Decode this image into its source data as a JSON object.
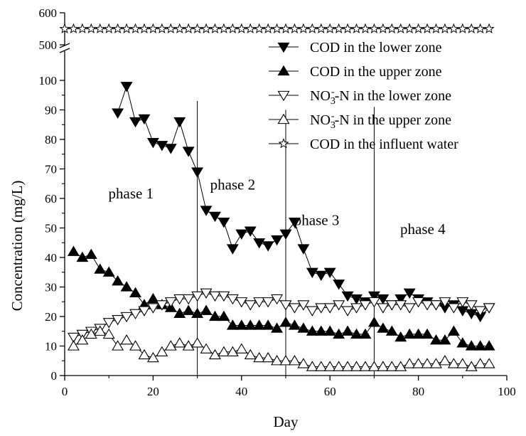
{
  "chart_data": {
    "type": "line",
    "xlabel": "Day",
    "ylabel": "Concentration (mg/L)",
    "xlim": [
      0,
      100
    ],
    "ylim_lower": [
      0,
      100
    ],
    "ylim_upper": [
      500,
      600
    ],
    "axis_break": "between 100 and 500",
    "x_ticks": [
      "0",
      "20",
      "40",
      "60",
      "80",
      "100"
    ],
    "y_ticks_lower": [
      "0",
      "10",
      "20",
      "30",
      "40",
      "50",
      "60",
      "70",
      "80",
      "90",
      "100"
    ],
    "y_ticks_upper": [
      "500",
      "600"
    ],
    "grid": false,
    "legend_position": "top-right",
    "phase_boundaries": [
      30,
      50,
      70
    ],
    "phases": [
      {
        "label": "phase 1",
        "x": 15,
        "y": 60
      },
      {
        "label": "phase 2",
        "x": 38,
        "y": 63
      },
      {
        "label": "phase 3",
        "x": 57,
        "y": 51
      },
      {
        "label": "phase 4",
        "x": 81,
        "y": 48
      }
    ],
    "series": [
      {
        "name": "COD in the lower zone",
        "marker": "triangle-down-filled",
        "x": [
          12,
          14,
          16,
          18,
          20,
          22,
          24,
          26,
          28,
          30,
          32,
          34,
          36,
          38,
          40,
          42,
          44,
          46,
          48,
          50,
          52,
          54,
          56,
          58,
          60,
          62,
          64,
          66,
          68,
          70,
          72,
          74,
          76,
          78,
          80,
          82,
          84,
          86,
          88,
          90,
          92,
          94,
          96
        ],
        "y": [
          89,
          98,
          86,
          87,
          79,
          78,
          77,
          86,
          76,
          69,
          56,
          54,
          52,
          43,
          48,
          49,
          45,
          44,
          46,
          48,
          52,
          43,
          35,
          34,
          35,
          31,
          27,
          26,
          25,
          27,
          26,
          24,
          26,
          28,
          26,
          25,
          24,
          23,
          24,
          22,
          21,
          20,
          23
        ]
      },
      {
        "name": "COD in the upper zone",
        "marker": "triangle-up-filled",
        "x": [
          2,
          4,
          6,
          8,
          10,
          12,
          14,
          16,
          18,
          20,
          22,
          24,
          26,
          28,
          30,
          32,
          34,
          36,
          38,
          40,
          42,
          44,
          46,
          48,
          50,
          52,
          54,
          56,
          58,
          60,
          62,
          64,
          66,
          68,
          70,
          72,
          74,
          76,
          78,
          80,
          82,
          84,
          86,
          88,
          90,
          92,
          94,
          96
        ],
        "y": [
          42,
          40,
          41,
          36,
          35,
          32,
          30,
          28,
          24,
          26,
          24,
          23,
          21,
          22,
          21,
          22,
          20,
          20,
          17,
          17,
          17,
          17,
          17,
          16,
          18,
          17,
          16,
          15,
          15,
          15,
          14,
          15,
          14,
          14,
          18,
          16,
          15,
          13,
          14,
          14,
          14,
          12,
          12,
          15,
          11,
          10,
          10,
          10
        ]
      },
      {
        "name": "NO3--N in the lower zone",
        "marker": "triangle-down-open",
        "x": [
          2,
          4,
          6,
          8,
          10,
          12,
          14,
          16,
          18,
          20,
          22,
          24,
          26,
          28,
          30,
          32,
          34,
          36,
          38,
          40,
          42,
          44,
          46,
          48,
          50,
          52,
          54,
          56,
          58,
          60,
          62,
          64,
          66,
          68,
          70,
          72,
          74,
          76,
          78,
          80,
          82,
          84,
          86,
          88,
          90,
          92,
          94,
          96
        ],
        "y": [
          13,
          14,
          15,
          16,
          18,
          19,
          20,
          21,
          22,
          23,
          24,
          25,
          26,
          26,
          27,
          28,
          27,
          27,
          26,
          25,
          24,
          25,
          25,
          26,
          24,
          23,
          24,
          22,
          23,
          23,
          24,
          22,
          23,
          24,
          25,
          23,
          24,
          24,
          23,
          25,
          24,
          24,
          25,
          23,
          25,
          24,
          22,
          23
        ]
      },
      {
        "name": "NO3--N in the upper zone",
        "marker": "triangle-up-open",
        "x": [
          2,
          4,
          6,
          8,
          10,
          12,
          14,
          16,
          18,
          20,
          22,
          24,
          26,
          28,
          30,
          32,
          34,
          36,
          38,
          40,
          42,
          44,
          46,
          48,
          50,
          52,
          54,
          56,
          58,
          60,
          62,
          64,
          66,
          68,
          70,
          72,
          74,
          76,
          78,
          80,
          82,
          84,
          86,
          88,
          90,
          92,
          94,
          96
        ],
        "y": [
          10,
          12,
          14,
          15,
          14,
          10,
          12,
          10,
          7,
          6,
          8,
          10,
          11,
          10,
          11,
          9,
          7,
          8,
          8,
          9,
          7,
          6,
          6,
          5,
          5,
          5,
          4,
          3,
          3,
          3,
          3,
          3,
          3,
          3,
          3,
          3,
          3,
          3,
          4,
          4,
          4,
          4,
          5,
          4,
          4,
          3,
          4,
          4
        ]
      },
      {
        "name": "COD in the influent water",
        "marker": "star-open",
        "x": [
          0,
          2,
          4,
          6,
          8,
          10,
          12,
          14,
          16,
          18,
          20,
          22,
          24,
          26,
          28,
          30,
          32,
          34,
          36,
          38,
          40,
          42,
          44,
          46,
          48,
          50,
          52,
          54,
          56,
          58,
          60,
          62,
          64,
          66,
          68,
          70,
          72,
          74,
          76,
          78,
          80,
          82,
          84,
          86,
          88,
          90,
          92,
          94,
          96
        ],
        "y": [
          550,
          550,
          550,
          550,
          550,
          550,
          550,
          550,
          550,
          550,
          550,
          550,
          550,
          550,
          550,
          550,
          550,
          550,
          550,
          550,
          550,
          550,
          550,
          550,
          550,
          550,
          550,
          550,
          550,
          550,
          550,
          550,
          550,
          550,
          550,
          550,
          550,
          550,
          550,
          550,
          550,
          550,
          550,
          550,
          550,
          550,
          550,
          550,
          550
        ]
      }
    ],
    "legend": [
      {
        "label": "COD in the lower zone",
        "marker": "triangle-down-filled"
      },
      {
        "label": "COD in the upper zone",
        "marker": "triangle-up-filled"
      },
      {
        "label_main": "NO",
        "label_sub": "3",
        "label_sup": "-",
        "label_rest": "-N in the lower zone",
        "marker": "triangle-down-open"
      },
      {
        "label_main": "NO",
        "label_sub": "3",
        "label_sup": "-",
        "label_rest": "-N in the upper zone",
        "marker": "triangle-up-open"
      },
      {
        "label": "COD in the influent water",
        "marker": "star-open"
      }
    ]
  }
}
